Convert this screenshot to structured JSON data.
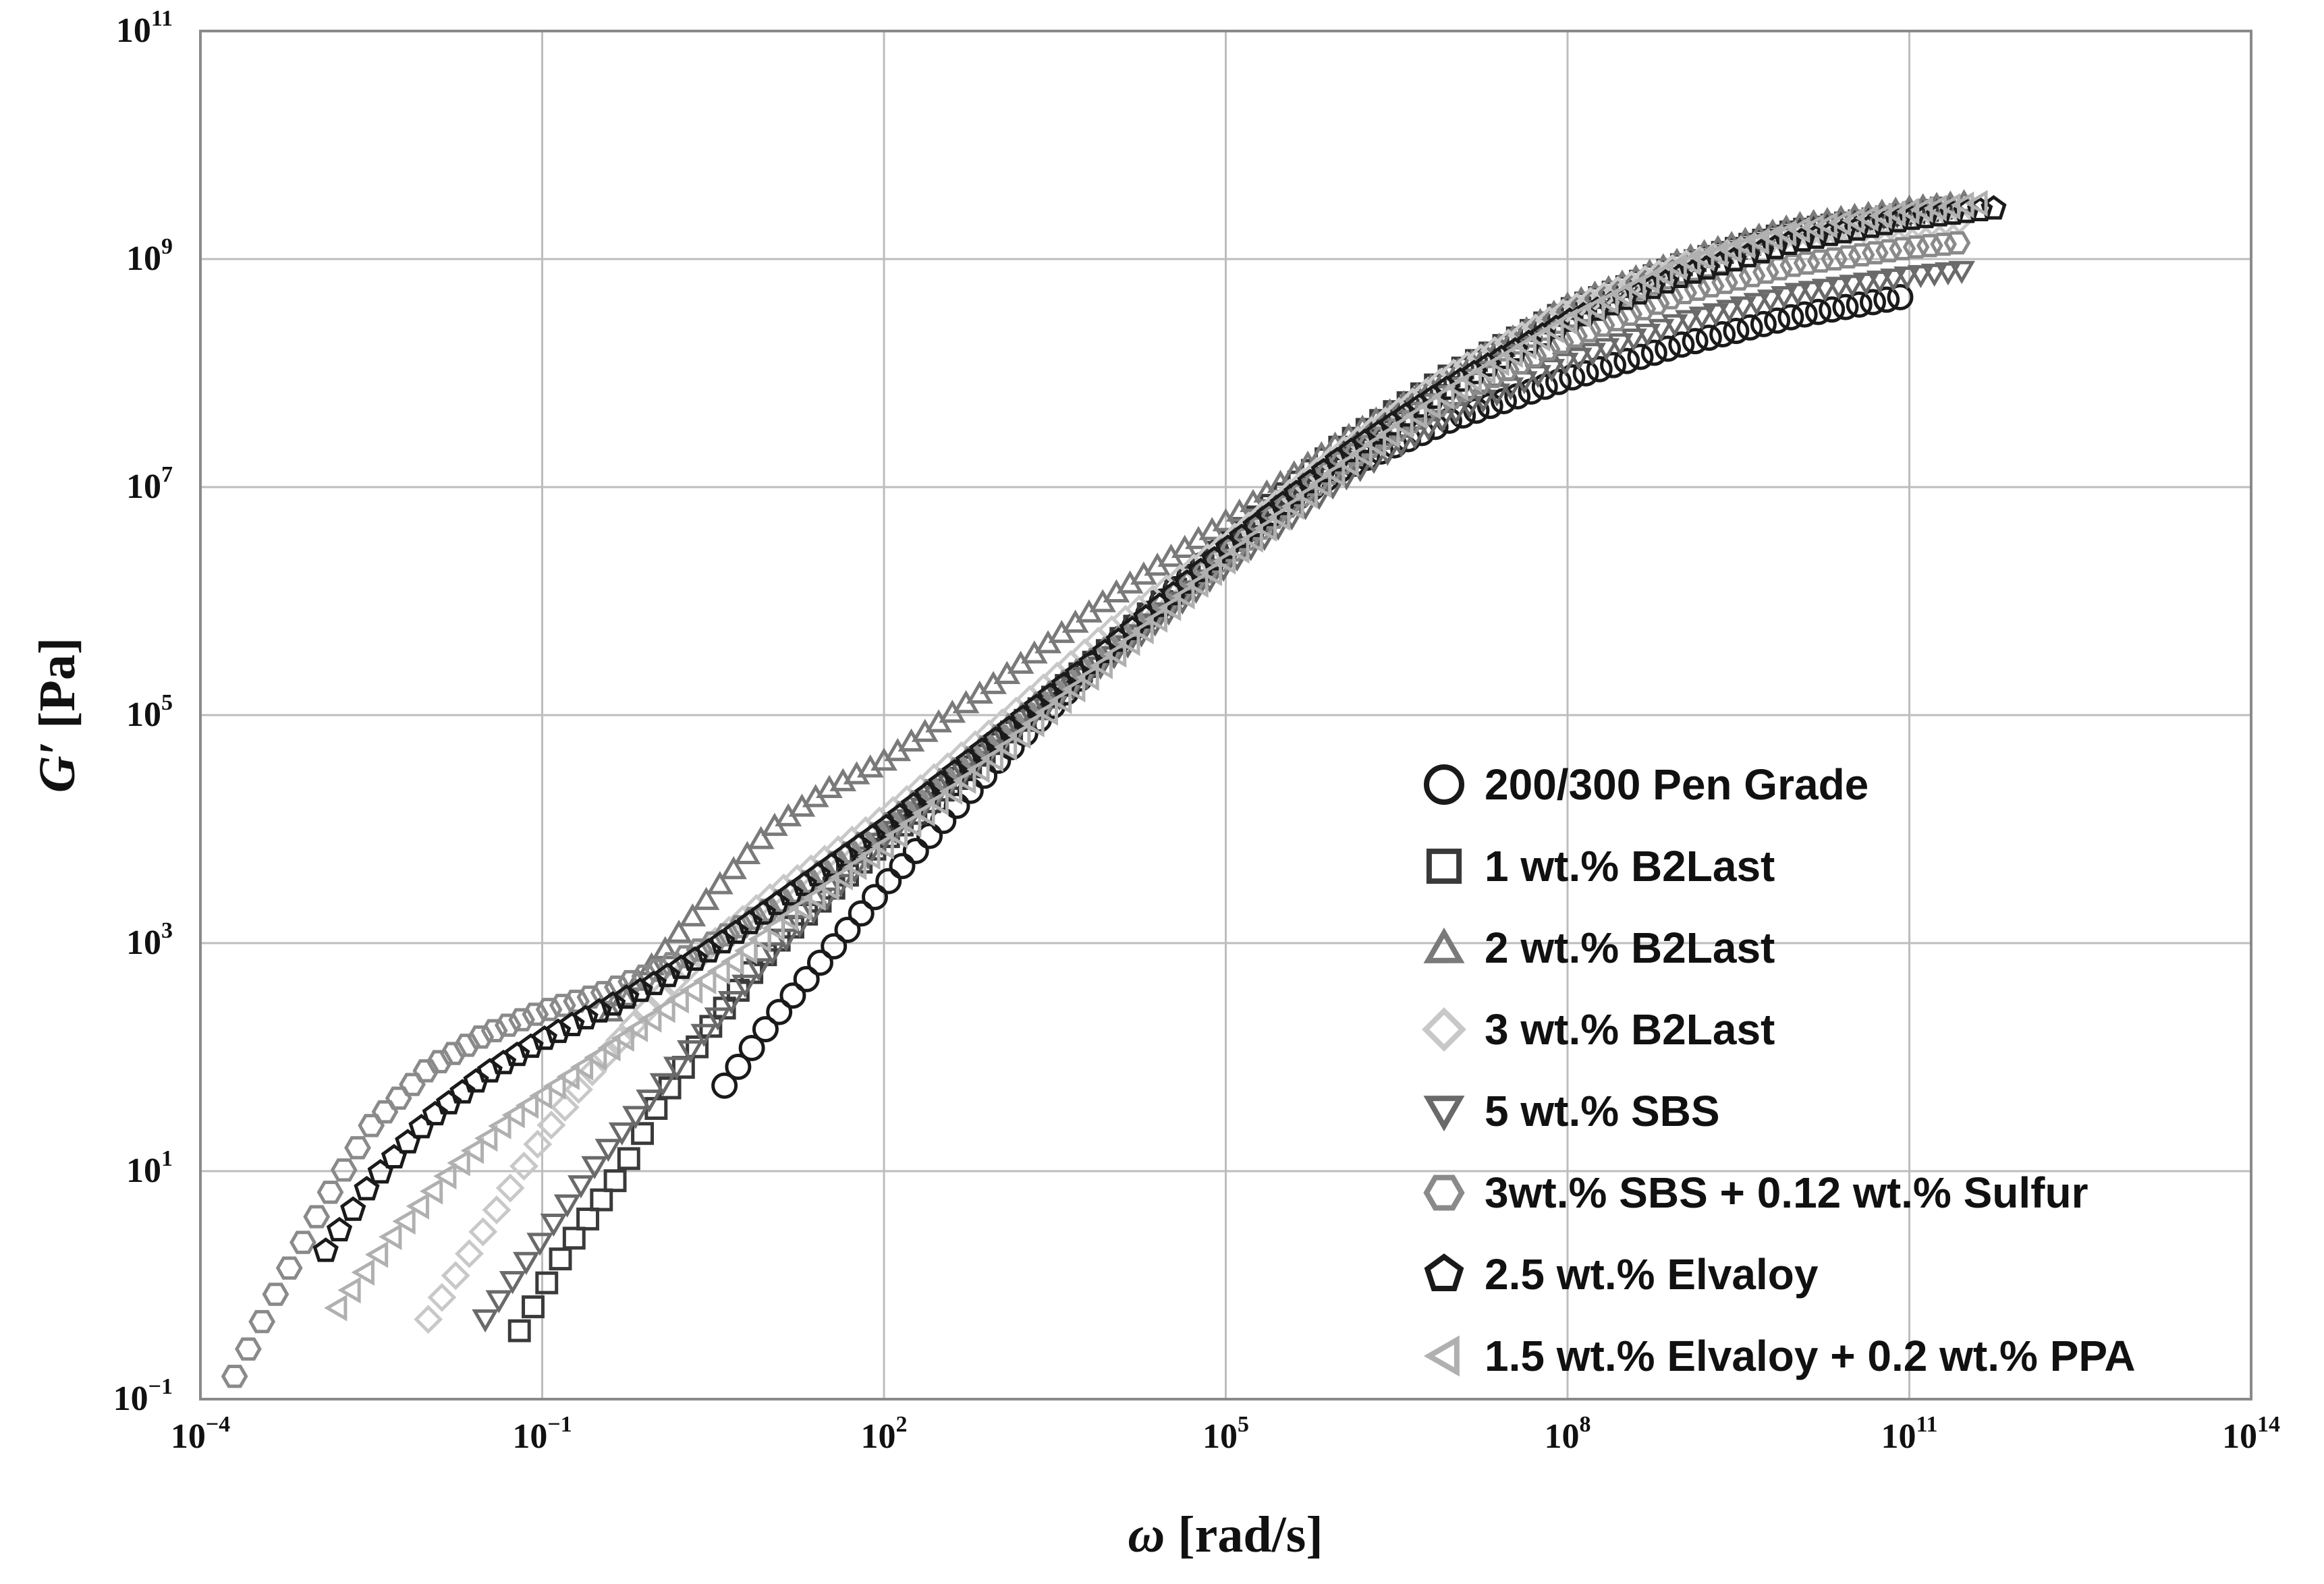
{
  "chart_data": {
    "type": "scatter",
    "title": "",
    "xlabel": {
      "symbol": "ω",
      "rest": " [rad/s]"
    },
    "ylabel": {
      "symbol": "G′",
      "rest": " [Pa]"
    },
    "xscale": "log",
    "yscale": "log",
    "xlim_exp": [
      -4,
      14
    ],
    "ylim_exp": [
      -1,
      11
    ],
    "x_ticks": [
      {
        "base": "10",
        "exp": "−4",
        "value": -4
      },
      {
        "base": "10",
        "exp": "−1",
        "value": -1
      },
      {
        "base": "10",
        "exp": "2",
        "value": 2
      },
      {
        "base": "10",
        "exp": "5",
        "value": 5
      },
      {
        "base": "10",
        "exp": "8",
        "value": 8
      },
      {
        "base": "10",
        "exp": "11",
        "value": 11
      },
      {
        "base": "10",
        "exp": "14",
        "value": 14
      }
    ],
    "y_ticks": [
      {
        "base": "10",
        "exp": "−1",
        "value": -1
      },
      {
        "base": "10",
        "exp": "1",
        "value": 1
      },
      {
        "base": "10",
        "exp": "3",
        "value": 3
      },
      {
        "base": "10",
        "exp": "5",
        "value": 5
      },
      {
        "base": "10",
        "exp": "7",
        "value": 7
      },
      {
        "base": "10",
        "exp": "9",
        "value": 9
      },
      {
        "base": "10",
        "exp": "11",
        "value": 11
      }
    ],
    "grid": true,
    "legend_position": "bottom-right",
    "series": [
      {
        "name": "200/300 Pen Grade",
        "marker": "circle",
        "color": "#1a1a1a",
        "log_omega_range": [
          0.6,
          11.0
        ],
        "points": [
          [
            0.6,
            1.75
          ],
          [
            1.0,
            2.3
          ],
          [
            1.5,
            2.9
          ],
          [
            2.0,
            3.5
          ],
          [
            3.0,
            4.6
          ],
          [
            4.0,
            5.6
          ],
          [
            5.0,
            6.5
          ],
          [
            6.0,
            7.15
          ],
          [
            7.0,
            7.6
          ],
          [
            8.0,
            7.95
          ],
          [
            9.0,
            8.25
          ],
          [
            10.0,
            8.5
          ],
          [
            11.0,
            8.68
          ]
        ]
      },
      {
        "name": "1 wt.% B2Last",
        "marker": "square",
        "color": "#3a3a3a",
        "log_omega_range": [
          -1.2,
          11.3
        ],
        "points": [
          [
            -1.2,
            -0.4
          ],
          [
            -0.8,
            0.3
          ],
          [
            -0.3,
            1.0
          ],
          [
            0.0,
            1.55
          ],
          [
            0.5,
            2.3
          ],
          [
            1.0,
            2.95
          ],
          [
            2.0,
            3.9
          ],
          [
            3.0,
            4.75
          ],
          [
            4.0,
            5.6
          ],
          [
            5.0,
            6.5
          ],
          [
            6.0,
            7.35
          ],
          [
            7.0,
            8.0
          ],
          [
            8.0,
            8.55
          ],
          [
            9.0,
            8.95
          ],
          [
            10.0,
            9.25
          ],
          [
            11.0,
            9.4
          ],
          [
            11.3,
            9.45
          ]
        ]
      },
      {
        "name": "2 wt.% B2Last",
        "marker": "triangle-up",
        "color": "#7a7a7a",
        "log_omega_range": [
          -0.4,
          11.5
        ],
        "points": [
          [
            -0.4,
            2.4
          ],
          [
            0.0,
            2.85
          ],
          [
            0.5,
            3.45
          ],
          [
            1.0,
            4.0
          ],
          [
            1.5,
            4.35
          ],
          [
            2.0,
            4.6
          ],
          [
            3.0,
            5.3
          ],
          [
            4.0,
            6.05
          ],
          [
            5.0,
            6.7
          ],
          [
            6.0,
            7.4
          ],
          [
            7.0,
            8.0
          ],
          [
            8.0,
            8.6
          ],
          [
            9.0,
            9.0
          ],
          [
            10.0,
            9.3
          ],
          [
            11.0,
            9.45
          ],
          [
            11.5,
            9.5
          ]
        ]
      },
      {
        "name": "3 wt.% B2Last",
        "marker": "diamond",
        "color": "#c8c8c8",
        "log_omega_range": [
          -2.0,
          11.5
        ],
        "points": [
          [
            -2.0,
            -0.3
          ],
          [
            -1.5,
            0.5
          ],
          [
            -1.0,
            1.3
          ],
          [
            -0.5,
            1.95
          ],
          [
            0.0,
            2.5
          ],
          [
            0.5,
            3.0
          ],
          [
            1.0,
            3.4
          ],
          [
            2.0,
            4.1
          ],
          [
            3.0,
            4.9
          ],
          [
            4.0,
            5.75
          ],
          [
            5.0,
            6.5
          ],
          [
            6.0,
            7.3
          ],
          [
            7.0,
            8.0
          ],
          [
            8.0,
            8.55
          ],
          [
            9.0,
            8.95
          ],
          [
            10.0,
            9.2
          ],
          [
            11.0,
            9.3
          ],
          [
            11.5,
            9.35
          ]
        ]
      },
      {
        "name": "5 wt.% SBS",
        "marker": "triangle-down",
        "color": "#6a6a6a",
        "log_omega_range": [
          -1.5,
          11.5
        ],
        "points": [
          [
            -1.5,
            -0.3
          ],
          [
            -1.0,
            0.4
          ],
          [
            -0.5,
            1.1
          ],
          [
            0.0,
            1.7
          ],
          [
            0.5,
            2.3
          ],
          [
            1.0,
            2.9
          ],
          [
            2.0,
            3.9
          ],
          [
            3.0,
            4.75
          ],
          [
            4.0,
            5.5
          ],
          [
            5.0,
            6.3
          ],
          [
            6.0,
            7.05
          ],
          [
            7.0,
            7.65
          ],
          [
            8.0,
            8.1
          ],
          [
            9.0,
            8.45
          ],
          [
            10.0,
            8.7
          ],
          [
            11.0,
            8.85
          ],
          [
            11.5,
            8.9
          ]
        ]
      },
      {
        "name": "3wt.% SBS + 0.12 wt.% Sulfur",
        "marker": "hexagon",
        "color": "#8a8a8a",
        "log_omega_range": [
          -3.7,
          11.5
        ],
        "points": [
          [
            -3.7,
            -0.8
          ],
          [
            -3.3,
            0.0
          ],
          [
            -2.9,
            0.75
          ],
          [
            -2.5,
            1.4
          ],
          [
            -2.0,
            1.9
          ],
          [
            -1.5,
            2.2
          ],
          [
            -1.0,
            2.4
          ],
          [
            -0.5,
            2.55
          ],
          [
            0.0,
            2.75
          ],
          [
            0.5,
            3.0
          ],
          [
            1.0,
            3.3
          ],
          [
            2.0,
            4.0
          ],
          [
            3.0,
            4.8
          ],
          [
            4.0,
            5.6
          ],
          [
            5.0,
            6.4
          ],
          [
            6.0,
            7.2
          ],
          [
            7.0,
            7.8
          ],
          [
            8.0,
            8.3
          ],
          [
            9.0,
            8.7
          ],
          [
            10.0,
            8.95
          ],
          [
            11.0,
            9.1
          ],
          [
            11.5,
            9.15
          ]
        ]
      },
      {
        "name": "2.5 wt.% Elvaloy",
        "marker": "pentagon",
        "color": "#1a1a1a",
        "log_omega_range": [
          -2.9,
          11.8
        ],
        "points": [
          [
            -2.9,
            0.3
          ],
          [
            -2.5,
            0.9
          ],
          [
            -2.0,
            1.45
          ],
          [
            -1.5,
            1.85
          ],
          [
            -1.0,
            2.15
          ],
          [
            -0.5,
            2.4
          ],
          [
            0.0,
            2.65
          ],
          [
            0.5,
            2.95
          ],
          [
            1.0,
            3.3
          ],
          [
            2.0,
            4.0
          ],
          [
            3.0,
            4.8
          ],
          [
            4.0,
            5.6
          ],
          [
            5.0,
            6.45
          ],
          [
            6.0,
            7.25
          ],
          [
            7.0,
            7.9
          ],
          [
            8.0,
            8.45
          ],
          [
            9.0,
            8.85
          ],
          [
            10.0,
            9.15
          ],
          [
            11.0,
            9.35
          ],
          [
            11.8,
            9.45
          ]
        ]
      },
      {
        "name": "1.5 wt.% Elvaloy + 0.2 wt.% PPA",
        "marker": "triangle-left",
        "color": "#b0b0b0",
        "log_omega_range": [
          -2.8,
          11.7
        ],
        "points": [
          [
            -2.8,
            -0.2
          ],
          [
            -2.3,
            0.45
          ],
          [
            -1.8,
            1.0
          ],
          [
            -1.3,
            1.45
          ],
          [
            -0.8,
            1.8
          ],
          [
            -0.3,
            2.15
          ],
          [
            0.2,
            2.5
          ],
          [
            0.7,
            2.85
          ],
          [
            1.0,
            3.1
          ],
          [
            2.0,
            3.85
          ],
          [
            3.0,
            4.65
          ],
          [
            4.0,
            5.5
          ],
          [
            5.0,
            6.35
          ],
          [
            6.0,
            7.15
          ],
          [
            7.0,
            7.85
          ],
          [
            8.0,
            8.45
          ],
          [
            9.0,
            8.95
          ],
          [
            10.0,
            9.25
          ],
          [
            11.0,
            9.42
          ],
          [
            11.7,
            9.5
          ]
        ]
      }
    ]
  }
}
